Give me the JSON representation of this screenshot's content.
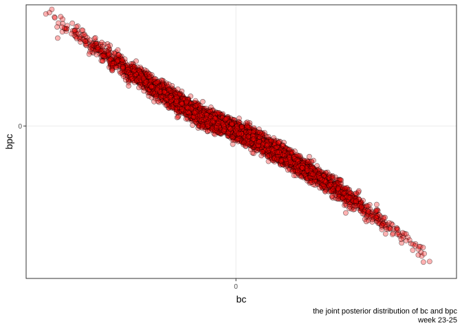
{
  "chart_data": {
    "type": "scatter",
    "xlabel": "bc",
    "ylabel": "bpc",
    "x_ticks": [
      {
        "value": 0,
        "label": "0"
      }
    ],
    "y_ticks": [
      {
        "value": 0,
        "label": "0"
      }
    ],
    "xlim": [
      -1.17,
      1.23
    ],
    "ylim": [
      -1.17,
      0.93
    ],
    "grid": true,
    "legend": "none",
    "point_fill": "#ff0000",
    "point_stroke": "#000000",
    "point_opacity": 0.3,
    "x": [
      -1.06,
      -1.04,
      -0.99,
      -0.97,
      -0.94,
      -0.9,
      -0.88,
      -0.84,
      -0.8,
      -0.77,
      -0.74,
      -0.71,
      -0.69,
      -0.66,
      -0.63,
      -0.6,
      -0.57,
      -0.54,
      -0.5,
      -0.47,
      -0.44,
      -0.4,
      -0.37,
      -0.33,
      -0.3,
      -0.27,
      -0.23,
      -0.2,
      -0.17,
      -0.13,
      -0.1,
      -0.07,
      -0.03,
      0.0,
      0.03,
      0.07,
      0.1,
      0.13,
      0.17,
      0.2,
      0.23,
      0.27,
      0.3,
      0.33,
      0.37,
      0.4,
      0.43,
      0.47,
      0.5,
      0.53,
      0.57,
      0.6,
      0.63,
      0.67,
      0.7,
      0.74,
      0.78,
      0.82,
      0.86,
      0.9,
      0.95,
      1.0,
      1.05,
      1.08
    ],
    "y": [
      0.86,
      0.87,
      0.79,
      0.76,
      0.77,
      0.73,
      0.71,
      0.65,
      0.62,
      0.6,
      0.54,
      0.55,
      0.48,
      0.5,
      0.45,
      0.41,
      0.42,
      0.37,
      0.34,
      0.3,
      0.28,
      0.26,
      0.22,
      0.19,
      0.17,
      0.14,
      0.1,
      0.08,
      0.06,
      0.04,
      0.02,
      0.01,
      -0.02,
      -0.04,
      -0.06,
      -0.08,
      -0.1,
      -0.12,
      -0.15,
      -0.18,
      -0.2,
      -0.23,
      -0.26,
      -0.29,
      -0.32,
      -0.34,
      -0.37,
      -0.4,
      -0.43,
      -0.45,
      -0.48,
      -0.52,
      -0.55,
      -0.58,
      -0.62,
      -0.66,
      -0.7,
      -0.75,
      -0.79,
      -0.83,
      -0.88,
      -0.92,
      -0.98,
      -1.04
    ]
  },
  "caption": {
    "line1": "the joint posterior distribution of bc and bpc",
    "line2": "week 23-25"
  }
}
